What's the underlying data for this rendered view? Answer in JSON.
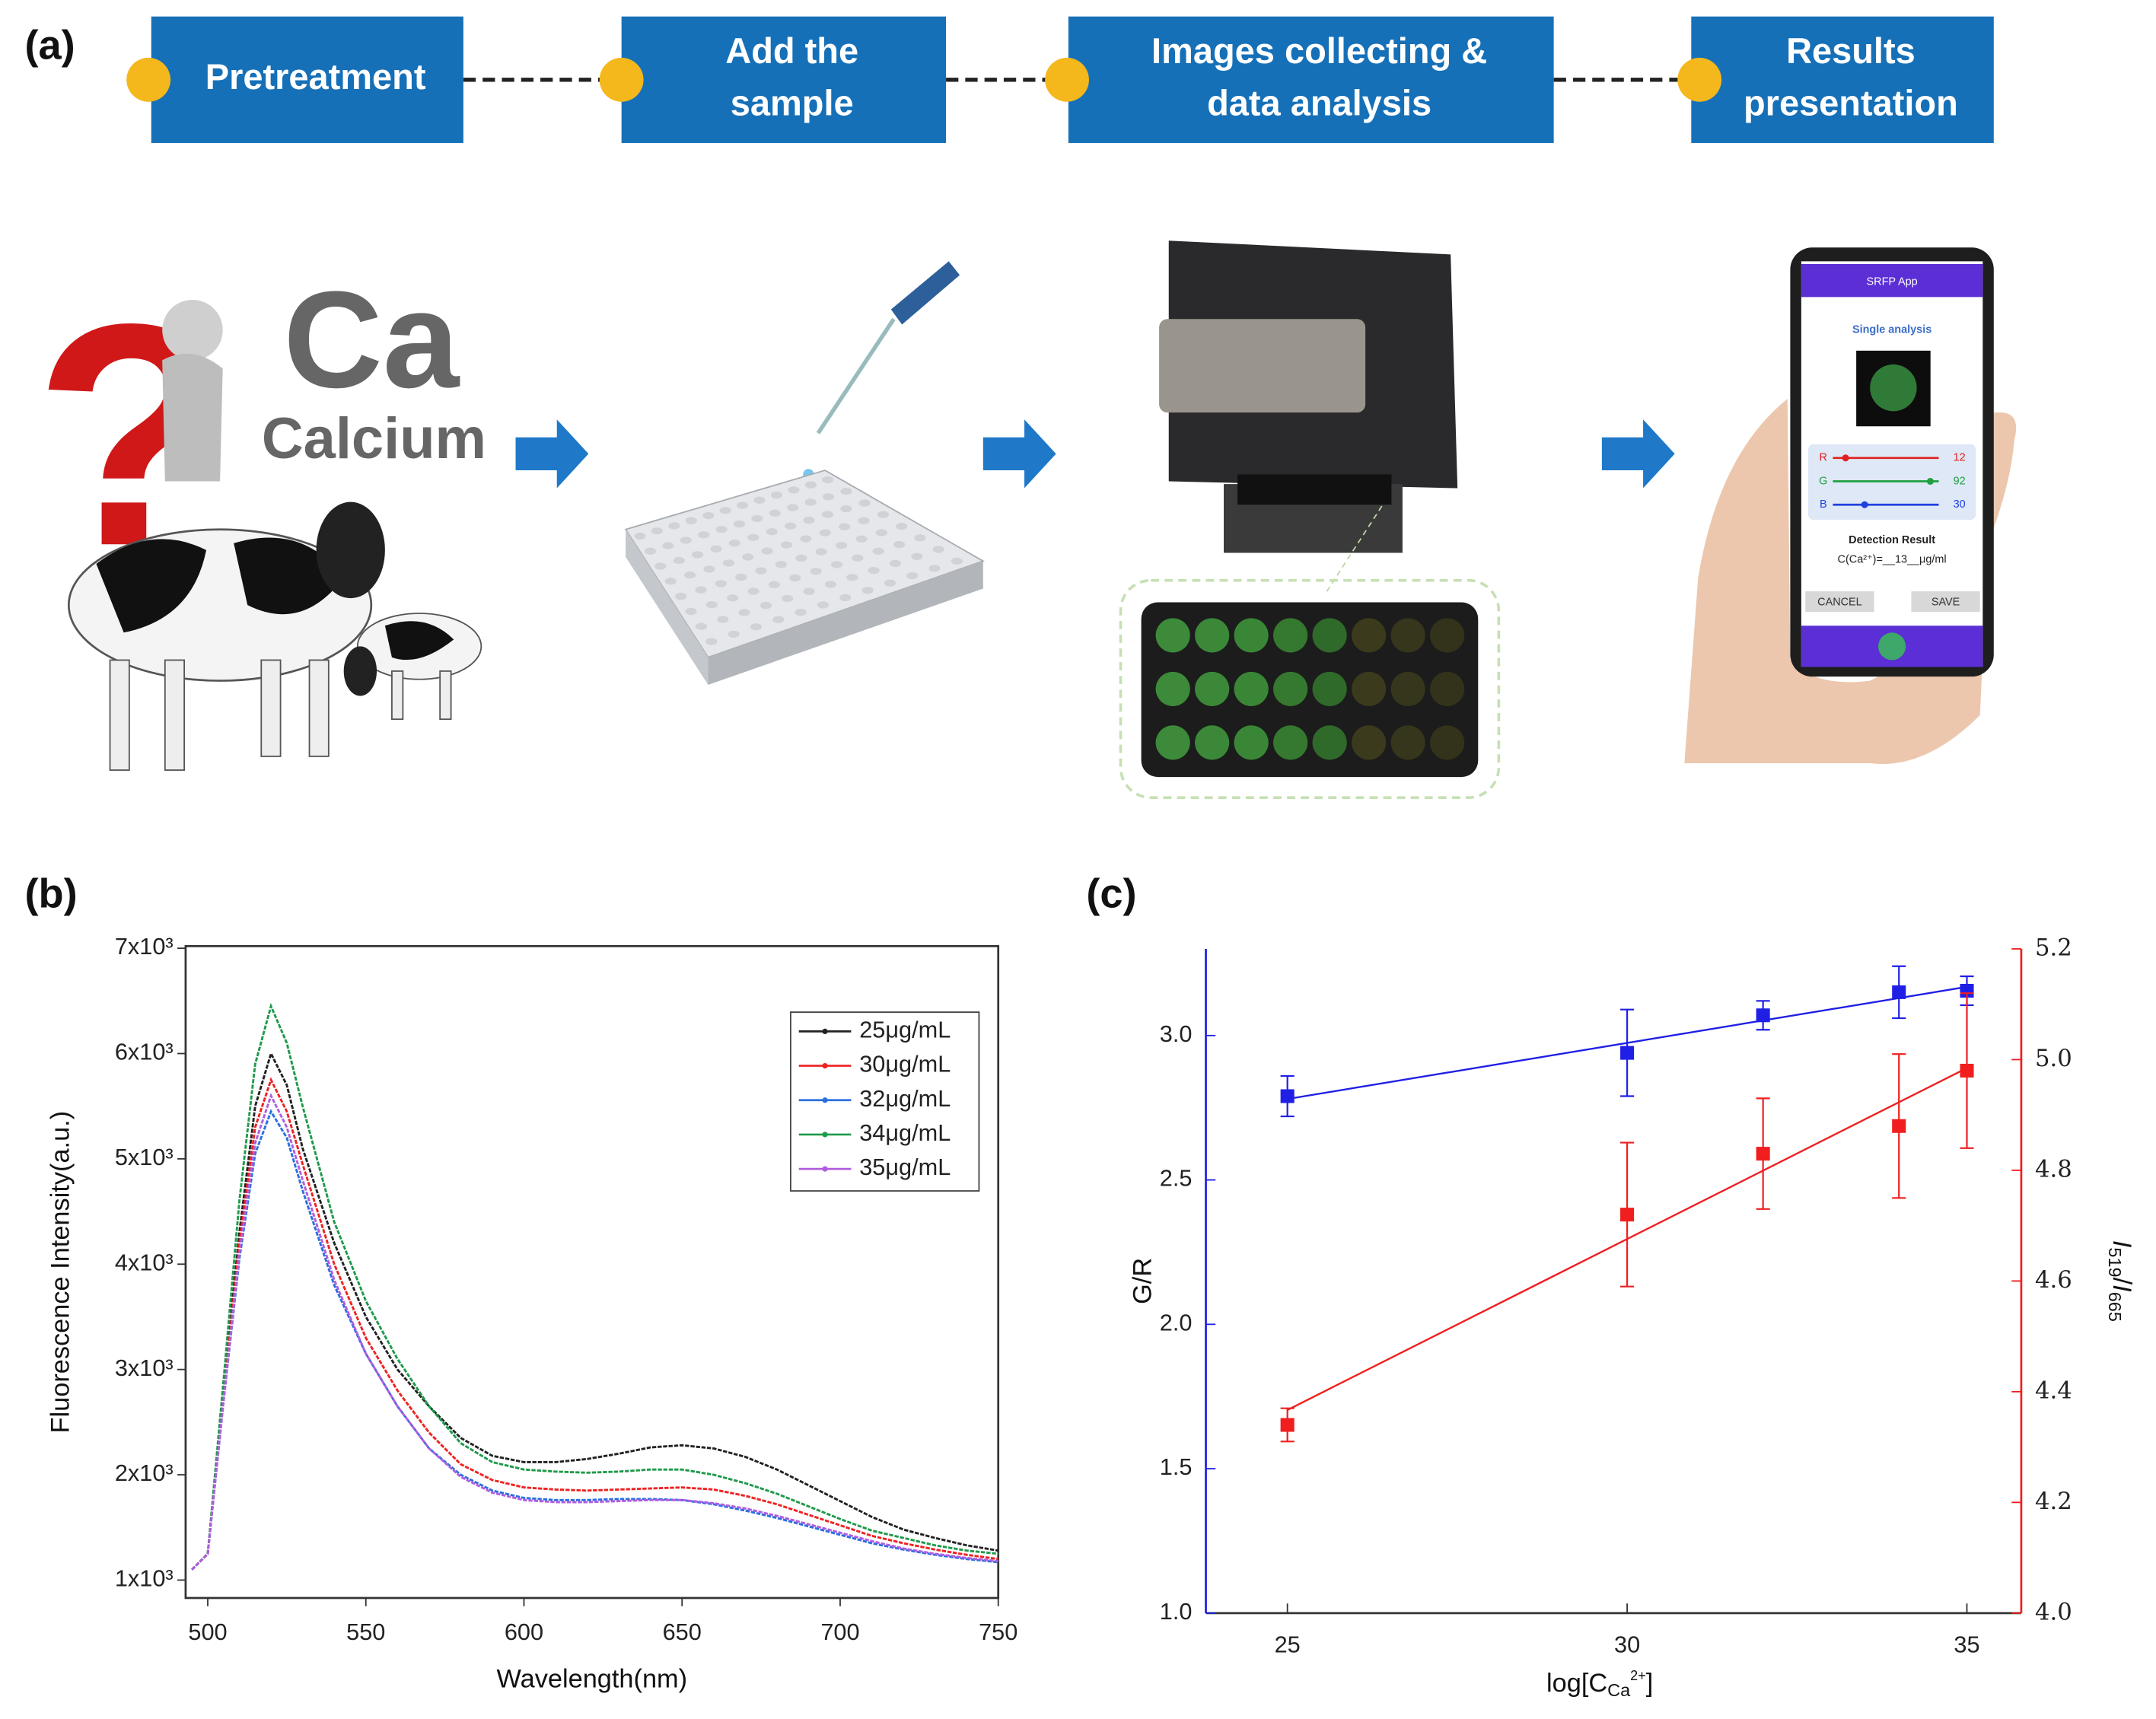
{
  "panels": [
    "(a)",
    "(b)",
    "(c)"
  ],
  "workflow": {
    "steps": [
      [
        "Pretreatment"
      ],
      [
        "Add the",
        "sample"
      ],
      [
        "Images collecting &",
        "data analysis"
      ],
      [
        "Results",
        "presentation"
      ]
    ]
  },
  "sample": {
    "symbol": "Ca",
    "name": "Calcium"
  },
  "app": {
    "title": "SRFP App",
    "heading": "Single analysis",
    "channels": [
      {
        "label": "R",
        "value": 12
      },
      {
        "label": "G",
        "value": 92
      },
      {
        "label": "B",
        "value": 30
      }
    ],
    "result_title": "Detection Result",
    "result": "C(Ca²⁺)=__13__μg/ml",
    "buttons": [
      "CANCEL",
      "SAVE"
    ]
  },
  "chart_data": [
    {
      "type": "line",
      "xlabel": "Wavelength(nm)",
      "ylabel": "Fluorescence Intensity(a.u.)",
      "x": [
        495,
        500,
        505,
        510,
        515,
        520,
        525,
        530,
        540,
        550,
        560,
        570,
        580,
        590,
        600,
        610,
        620,
        630,
        640,
        650,
        660,
        670,
        680,
        690,
        700,
        710,
        720,
        730,
        740,
        750
      ],
      "series": [
        {
          "name": "25μg/mL",
          "color": "#222222",
          "values": [
            1100,
            1250,
            2800,
            4300,
            5500,
            6000,
            5700,
            5100,
            4200,
            3500,
            3000,
            2650,
            2350,
            2180,
            2120,
            2120,
            2150,
            2200,
            2260,
            2280,
            2250,
            2170,
            2050,
            1900,
            1750,
            1600,
            1480,
            1400,
            1330,
            1280
          ]
        },
        {
          "name": "30μg/mL",
          "color": "#ee2222",
          "values": [
            1100,
            1250,
            2750,
            4200,
            5300,
            5750,
            5450,
            4950,
            4000,
            3300,
            2800,
            2400,
            2100,
            1950,
            1880,
            1860,
            1850,
            1860,
            1870,
            1880,
            1860,
            1800,
            1720,
            1620,
            1520,
            1420,
            1350,
            1290,
            1240,
            1200
          ]
        },
        {
          "name": "32μg/mL",
          "color": "#2b6fe0",
          "values": [
            1100,
            1250,
            2700,
            4050,
            5050,
            5450,
            5200,
            4700,
            3800,
            3150,
            2650,
            2250,
            2000,
            1850,
            1780,
            1760,
            1760,
            1770,
            1770,
            1760,
            1720,
            1660,
            1590,
            1510,
            1430,
            1350,
            1290,
            1240,
            1200,
            1170
          ]
        },
        {
          "name": "34μg/mL",
          "color": "#1e9a4a",
          "values": [
            1100,
            1250,
            2900,
            4600,
            5900,
            6450,
            6100,
            5500,
            4400,
            3650,
            3100,
            2650,
            2300,
            2120,
            2050,
            2030,
            2020,
            2030,
            2050,
            2050,
            2000,
            1920,
            1820,
            1700,
            1580,
            1470,
            1400,
            1330,
            1280,
            1250
          ]
        },
        {
          "name": "35μg/mL",
          "color": "#b05de0",
          "values": [
            1100,
            1250,
            2700,
            4100,
            5150,
            5600,
            5300,
            4800,
            3850,
            3150,
            2650,
            2250,
            1980,
            1830,
            1760,
            1740,
            1740,
            1750,
            1760,
            1760,
            1730,
            1680,
            1610,
            1530,
            1450,
            1370,
            1300,
            1250,
            1210,
            1180
          ]
        }
      ],
      "xlim": [
        493,
        750
      ],
      "ylim": [
        830,
        7020
      ],
      "xticks": [
        500,
        550,
        600,
        650,
        700,
        750
      ],
      "yticks": [
        {
          "value": 1000,
          "label": "1x10³"
        },
        {
          "value": 2000,
          "label": "2x10³"
        },
        {
          "value": 3000,
          "label": "3x10³"
        },
        {
          "value": 4000,
          "label": "4x10³"
        },
        {
          "value": 5000,
          "label": "5x10³"
        },
        {
          "value": 6000,
          "label": "6x10³"
        },
        {
          "value": 7000,
          "label": "7x10³"
        }
      ],
      "legend": "upper right"
    },
    {
      "type": "scatter",
      "xlabel_parts": [
        "log[C",
        "Ca",
        "2+",
        "]"
      ],
      "ylabel": "G/R",
      "y2label_parts": [
        "I",
        "519",
        "/",
        "I",
        "665"
      ],
      "x": [
        25,
        30,
        32,
        34,
        35
      ],
      "series": [
        {
          "color": "#1f1fe6",
          "values": [
            2.79,
            2.94,
            3.07,
            3.15,
            3.155
          ],
          "errors": [
            0.07,
            0.15,
            0.05,
            0.09,
            0.05
          ]
        },
        {
          "color": "#f01e1e",
          "axis": "y2",
          "values": [
            4.34,
            4.72,
            4.83,
            4.88,
            4.98
          ],
          "errors": [
            0.03,
            0.13,
            0.1,
            0.13,
            0.14
          ]
        }
      ],
      "xlim": [
        23.8,
        35.8
      ],
      "ylim": [
        1,
        3.3
      ],
      "y2lim": [
        4,
        5.2
      ],
      "xticks": [
        25,
        30,
        35
      ],
      "yticks": [
        {
          "value": 1,
          "label": "1.0"
        },
        1.5,
        {
          "value": 2,
          "label": "2.0"
        },
        2.5,
        {
          "value": 3,
          "label": "3.0"
        }
      ],
      "y2ticks": [
        {
          "value": 4,
          "label": "4.0"
        },
        4.2,
        4.4,
        4.6,
        4.8,
        {
          "value": 5,
          "label": "5.0"
        },
        5.2
      ],
      "fit": true
    }
  ]
}
